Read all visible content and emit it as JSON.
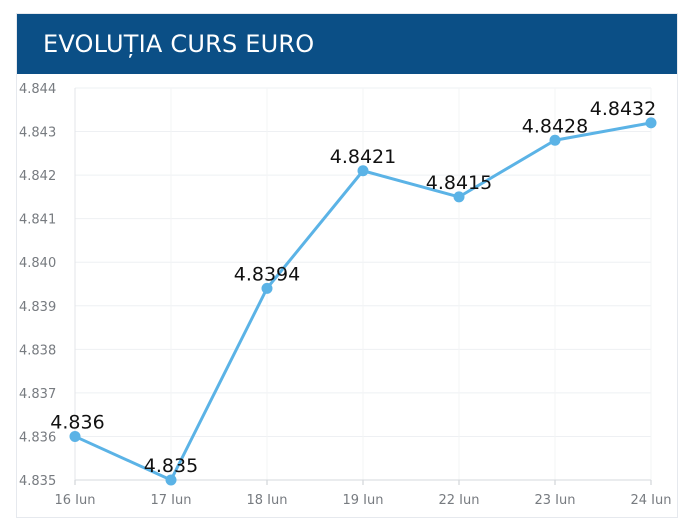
{
  "header": {
    "title": "EVOLUȚIA CURS EURO",
    "bg_color": "#0b4f86"
  },
  "chart_data": {
    "type": "line",
    "title": "EVOLUȚIA CURS EURO",
    "xlabel": "",
    "ylabel": "",
    "categories": [
      "16 Iun",
      "17 Iun",
      "18 Iun",
      "19 Iun",
      "22 Iun",
      "23 Iun",
      "24 Iun"
    ],
    "series": [
      {
        "values": [
          4.836,
          4.835,
          4.8394,
          4.8421,
          4.8415,
          4.8428,
          4.8432
        ],
        "labels": [
          "4.836",
          "4.835",
          "4.8394",
          "4.8421",
          "4.8415",
          "4.8428",
          "4.8432"
        ],
        "color": "#5bb3e6"
      }
    ],
    "y_ticks": [
      "4.835",
      "4.836",
      "4.837",
      "4.838",
      "4.839",
      "4.840",
      "4.841",
      "4.842",
      "4.843",
      "4.844"
    ],
    "ylim": [
      4.835,
      4.844
    ],
    "grid": true,
    "legend": "none"
  }
}
